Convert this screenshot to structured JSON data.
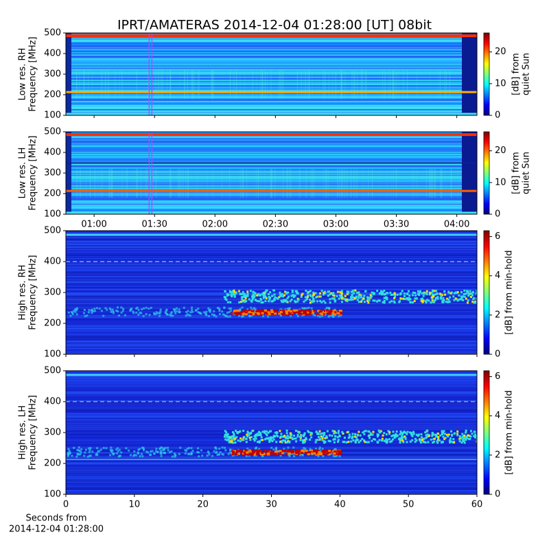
{
  "title": "IPRT/AMATERAS 2014-12-04 01:28:00 [UT]   08bit",
  "chart_data": [
    {
      "type": "heatmap",
      "ylabel": [
        "Low res. RH",
        "Frequency [MHz]"
      ],
      "ylim": [
        100,
        500
      ],
      "yticks": [
        100,
        200,
        300,
        400,
        500
      ],
      "xlim": [
        46,
        250
      ],
      "xticks": [
        {
          "value": 60,
          "label": "01:00"
        },
        {
          "value": 90,
          "label": "01:30"
        },
        {
          "value": 120,
          "label": "02:00"
        },
        {
          "value": 150,
          "label": "02:30"
        },
        {
          "value": 180,
          "label": "03:00"
        },
        {
          "value": 210,
          "label": "03:30"
        },
        {
          "value": 240,
          "label": "04:00"
        }
      ],
      "marker_x": 88,
      "marker_color": "#c040ff",
      "colorbar": {
        "label": [
          "[dB] from",
          "quiet Sun"
        ],
        "lim": [
          0,
          26
        ],
        "ticks": [
          0,
          10,
          20
        ]
      }
    },
    {
      "type": "heatmap",
      "ylabel": [
        "Low res. LH",
        "Frequency [MHz]"
      ],
      "ylim": [
        100,
        500
      ],
      "yticks": [
        100,
        200,
        300,
        400,
        500
      ],
      "xlim": [
        46,
        250
      ],
      "xticks": [
        {
          "value": 60,
          "label": "01:00"
        },
        {
          "value": 90,
          "label": "01:30"
        },
        {
          "value": 120,
          "label": "02:00"
        },
        {
          "value": 150,
          "label": "02:30"
        },
        {
          "value": 180,
          "label": "03:00"
        },
        {
          "value": 210,
          "label": "03:30"
        },
        {
          "value": 240,
          "label": "04:00"
        }
      ],
      "marker_x": 88,
      "marker_color": "#c040ff",
      "colorbar": {
        "label": [
          "[dB] from",
          "quiet Sun"
        ],
        "lim": [
          0,
          26
        ],
        "ticks": [
          0,
          10,
          20
        ]
      }
    },
    {
      "type": "heatmap",
      "ylabel": [
        "High res. RH",
        "Frequency [MHz]"
      ],
      "ylim": [
        100,
        500
      ],
      "yticks": [
        100,
        200,
        300,
        400,
        500
      ],
      "xlim": [
        0,
        60
      ],
      "xticks": [
        0,
        10,
        20,
        30,
        40,
        50,
        60
      ],
      "colorbar": {
        "label": [
          "[dB] from min-hold"
        ],
        "lim": [
          0,
          6.3
        ],
        "ticks": [
          0,
          2,
          4,
          6
        ]
      }
    },
    {
      "type": "heatmap",
      "ylabel": [
        "High res. LH",
        "Frequency [MHz]"
      ],
      "ylim": [
        100,
        500
      ],
      "yticks": [
        100,
        200,
        300,
        400,
        500
      ],
      "xlim": [
        0,
        60
      ],
      "xticks": [
        0,
        10,
        20,
        30,
        40,
        50,
        60
      ],
      "xlabel": [
        "Seconds from",
        "2014-12-04 01:28:00"
      ],
      "colorbar": {
        "label": [
          "[dB] from min-hold"
        ],
        "lim": [
          0,
          6.3
        ],
        "ticks": [
          0,
          2,
          4,
          6
        ]
      }
    }
  ]
}
